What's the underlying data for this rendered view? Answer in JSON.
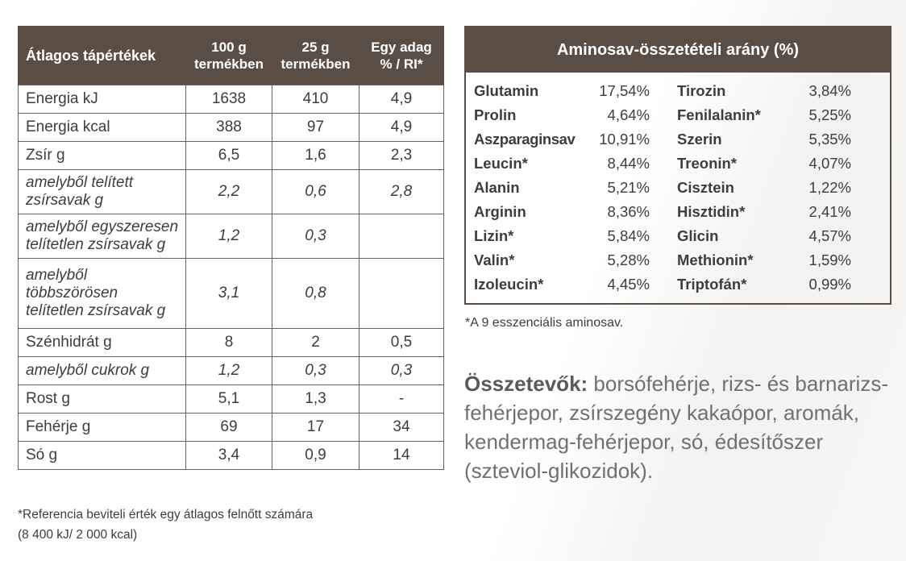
{
  "nutrition": {
    "headers": {
      "col1": "Átlagos tápértékek",
      "col2_line1": "100 g",
      "col2_line2": "termékben",
      "col3_line1": "25 g",
      "col3_line2": "termékben",
      "col4_line1": "Egy adag",
      "col4_line2": "% / RI*"
    },
    "rows": [
      {
        "label": "Energia kJ",
        "v100": "1638",
        "v25": "410",
        "ri": "4,9"
      },
      {
        "label": "Energia kcal",
        "v100": "388",
        "v25": "97",
        "ri": "4,9"
      },
      {
        "label": "Zsír g",
        "v100": "6,5",
        "v25": "1,6",
        "ri": "2,3"
      },
      {
        "label_line1": "amelyből telített",
        "label_line2": "zsírsavak g",
        "v100": "2,2",
        "v25": "0,6",
        "ri": "2,8"
      },
      {
        "label_line1": "amelyből egyszeresen",
        "label_line2": "telítetlen zsírsavak g",
        "v100": "1,2",
        "v25": "0,3",
        "ri": ""
      },
      {
        "label_line1": "amelyből",
        "label_line2": "többszörösen",
        "label_line3": "telítetlen zsírsavak g",
        "v100": "3,1",
        "v25": "0,8",
        "ri": ""
      },
      {
        "label": "Szénhidrát g",
        "v100": "8",
        "v25": "2",
        "ri": "0,5"
      },
      {
        "label": "amelyből cukrok g",
        "v100": "1,2",
        "v25": "0,3",
        "ri": "0,3"
      },
      {
        "label": "Rost g",
        "v100": "5,1",
        "v25": "1,3",
        "ri": "-"
      },
      {
        "label": "Fehérje g",
        "v100": "69",
        "v25": "17",
        "ri": "34"
      },
      {
        "label": "Só g",
        "v100": "3,4",
        "v25": "0,9",
        "ri": "14"
      }
    ],
    "footnote_line1": "*Referencia beviteli érték egy átlagos felnőtt számára",
    "footnote_line2": "(8 400 kJ/ 2 000 kcal)"
  },
  "amino": {
    "title": "Aminosav-összetételi arány (%)",
    "rows": [
      {
        "name1": "Glutamin",
        "val1": "17,54%",
        "name2": "Tirozin",
        "val2": "3,84%"
      },
      {
        "name1": "Prolin",
        "val1": "4,64%",
        "name2": "Fenilalanin*",
        "val2": "5,25%"
      },
      {
        "name1": "Aszparaginsav",
        "val1": "10,91%",
        "name2": "Szerin",
        "val2": "5,35%"
      },
      {
        "name1": "Leucin*",
        "val1": "8,44%",
        "name2": "Treonin*",
        "val2": "4,07%"
      },
      {
        "name1": "Alanin",
        "val1": "5,21%",
        "name2": "Cisztein",
        "val2": "1,22%"
      },
      {
        "name1": "Arginin",
        "val1": "8,36%",
        "name2": "Hisztidin*",
        "val2": "2,41%"
      },
      {
        "name1": "Lizin*",
        "val1": "5,84%",
        "name2": "Glicin",
        "val2": "4,57%"
      },
      {
        "name1": "Valin*",
        "val1": "5,28%",
        "name2": "Methionin*",
        "val2": "1,59%"
      },
      {
        "name1": "Izoleucin*",
        "val1": "4,45%",
        "name2": "Triptofán*",
        "val2": "0,99%"
      }
    ],
    "footnote": "*A 9 esszenciális aminosav."
  },
  "ingredients": {
    "label": "Összetevők:",
    "text": " borsófehérje, rizs- és barnarizs-fehérjepor, zsírszegény kakaópor, aromák, kendermag-fehérjepor, só, édesítőszer (szteviol-glikozidok)."
  },
  "colors": {
    "header_brown": "#5a4e44",
    "text_dark": "#3d3d3d",
    "ingredients_gray": "#707070"
  }
}
